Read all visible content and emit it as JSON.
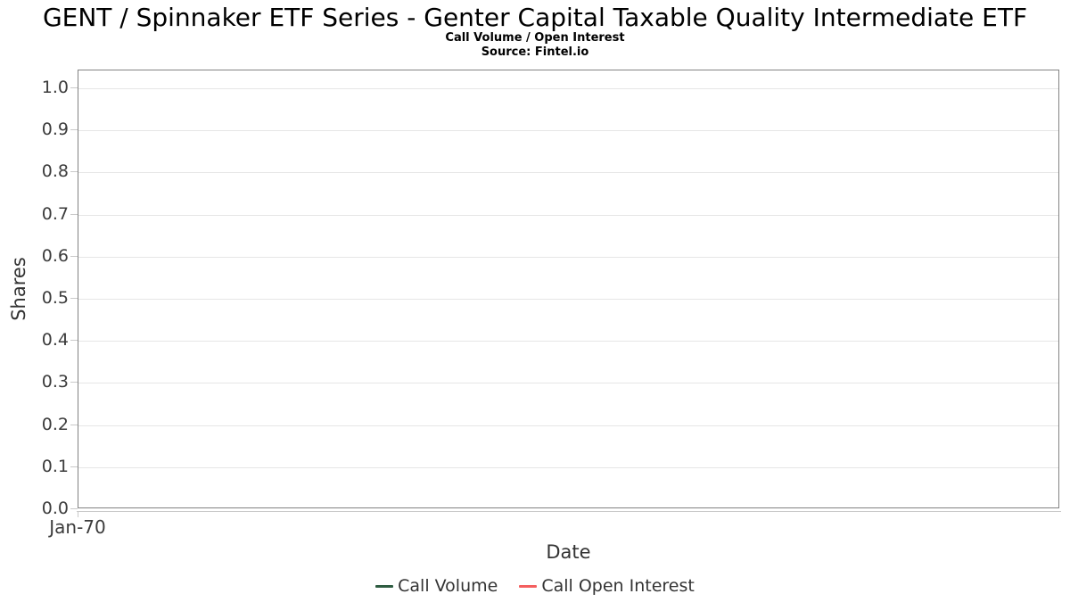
{
  "header": {
    "title": "GENT / Spinnaker ETF Series - Genter Capital Taxable Quality Intermediate ETF",
    "subtitle": "Call Volume / Open Interest",
    "source": "Source: Fintel.io"
  },
  "chart_data": {
    "type": "line",
    "title": "GENT / Spinnaker ETF Series - Genter Capital Taxable Quality Intermediate ETF",
    "subtitle": "Call Volume / Open Interest",
    "source": "Source: Fintel.io",
    "xlabel": "Date",
    "ylabel": "Shares",
    "x_tick_labels": [
      "Jan-70"
    ],
    "y_ticks": [
      0.0,
      0.1,
      0.2,
      0.3,
      0.4,
      0.5,
      0.6,
      0.7,
      0.8,
      0.9,
      1.0
    ],
    "y_tick_labels": [
      "0.0",
      "0.1",
      "0.2",
      "0.3",
      "0.4",
      "0.5",
      "0.6",
      "0.7",
      "0.8",
      "0.9",
      "1.0"
    ],
    "ylim": [
      0,
      1.04
    ],
    "grid": true,
    "legend_position": "bottom-center",
    "series": [
      {
        "name": "Call Volume",
        "color": "#2e5c41",
        "x": [],
        "values": []
      },
      {
        "name": "Call Open Interest",
        "color": "#f45f5f",
        "x": [],
        "values": []
      }
    ]
  },
  "theme": {
    "grid_color": "#e6e6e6",
    "border_color": "#828282",
    "tick_color": "#c9c9c9",
    "label_color": "#3c3c3c",
    "axis_title_color": "#333333",
    "legend_text_color": "#333333"
  }
}
